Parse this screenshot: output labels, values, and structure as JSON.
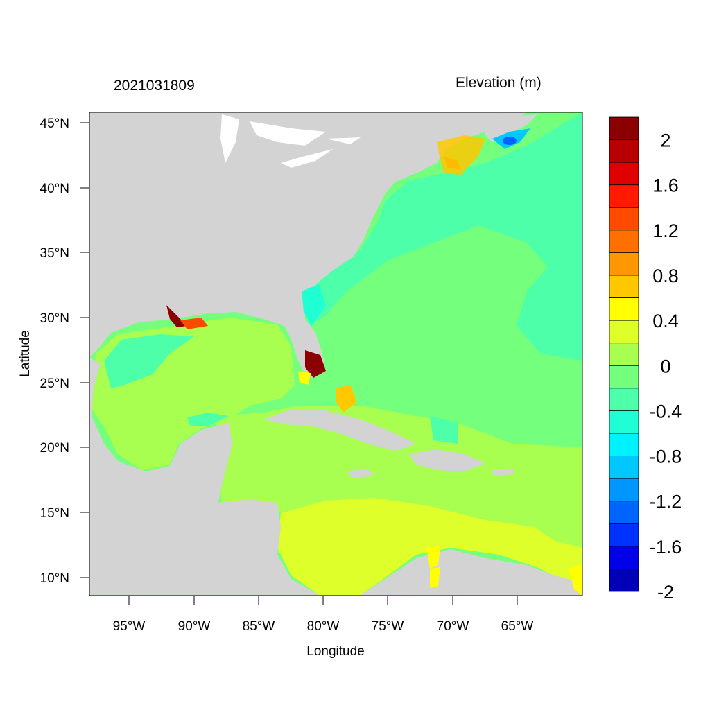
{
  "header": {
    "timestamp": "2021031809",
    "field_title": "Elevation (m)"
  },
  "axes": {
    "xlabel": "Longitude",
    "ylabel": "Latitude",
    "lon_ticks": [
      "95°W",
      "90°W",
      "85°W",
      "80°W",
      "75°W",
      "70°W",
      "65°W"
    ],
    "lat_ticks": [
      "45°N",
      "40°N",
      "35°N",
      "30°N",
      "25°N",
      "20°N",
      "15°N",
      "10°N"
    ]
  },
  "colorbar": {
    "labels": [
      "2",
      "1.6",
      "1.2",
      "0.8",
      "0.4",
      "0",
      "-0.4",
      "-0.8",
      "-1.2",
      "-1.6",
      "-2"
    ],
    "colors": [
      "#8b0000",
      "#b90000",
      "#e00000",
      "#ff1a00",
      "#ff4a00",
      "#ff7000",
      "#ff9800",
      "#ffc800",
      "#ffff00",
      "#dfff2a",
      "#a8ff50",
      "#74ff7c",
      "#4effa9",
      "#20ffd4",
      "#00f2ff",
      "#00c8ff",
      "#0096ff",
      "#0064ff",
      "#0032ff",
      "#0000e8",
      "#0000b4"
    ]
  },
  "chart_data": {
    "type": "heatmap",
    "title": "2021031809",
    "subtitle": "Elevation (m)",
    "xlabel": "Longitude",
    "ylabel": "Latitude",
    "xlim": [
      -98,
      -60
    ],
    "ylim": [
      8.5,
      46
    ],
    "colorbar_range": [
      -2.2,
      2.2
    ],
    "colorbar_step": 0.2,
    "land_color": "#d3d3d3"
  }
}
